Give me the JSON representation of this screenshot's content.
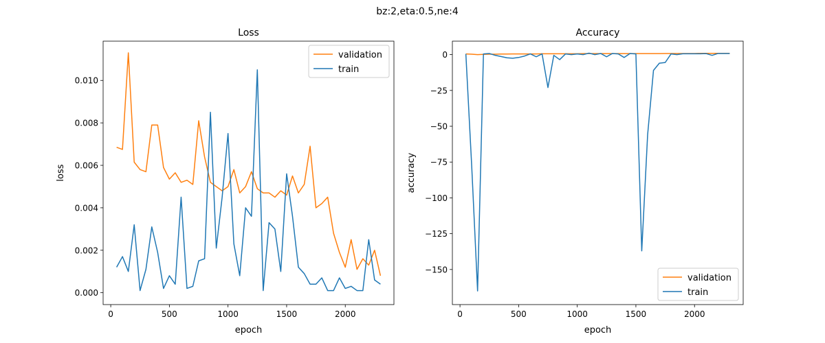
{
  "figure": {
    "suptitle": "bz:2,eta:0.5,ne:4"
  },
  "colors": {
    "validation": "#ff7f0e",
    "train": "#1f77b4",
    "axes": "#000000",
    "legend_border": "#cccccc"
  },
  "chart_data": [
    {
      "type": "line",
      "title": "Loss",
      "xlabel": "epoch",
      "ylabel": "loss",
      "xlim": [
        -65,
        2415
      ],
      "ylim": [
        -0.00056,
        0.01185
      ],
      "xticks": [
        0,
        500,
        1000,
        1500,
        2000
      ],
      "xtick_labels": [
        "0",
        "500",
        "1000",
        "1500",
        "2000"
      ],
      "yticks": [
        0,
        0.002,
        0.004,
        0.006,
        0.008,
        0.01
      ],
      "ytick_labels": [
        "0.000",
        "0.002",
        "0.004",
        "0.006",
        "0.008",
        "0.010"
      ],
      "legend": "top-right",
      "grid": false,
      "x": [
        50,
        100,
        150,
        200,
        250,
        300,
        350,
        400,
        450,
        500,
        550,
        600,
        650,
        700,
        750,
        800,
        850,
        900,
        950,
        1000,
        1050,
        1100,
        1150,
        1200,
        1250,
        1300,
        1350,
        1400,
        1450,
        1500,
        1550,
        1600,
        1650,
        1700,
        1750,
        1800,
        1850,
        1900,
        1950,
        2000,
        2050,
        2100,
        2150,
        2200,
        2250,
        2300
      ],
      "series": [
        {
          "name": "validation",
          "values": [
            0.00685,
            0.00675,
            0.0113,
            0.00615,
            0.0058,
            0.0057,
            0.0079,
            0.0079,
            0.0059,
            0.00535,
            0.00565,
            0.0052,
            0.0053,
            0.0051,
            0.0081,
            0.0064,
            0.0052,
            0.005,
            0.0048,
            0.005,
            0.0058,
            0.0047,
            0.005,
            0.0057,
            0.0049,
            0.0047,
            0.0047,
            0.0045,
            0.0048,
            0.0046,
            0.0055,
            0.0047,
            0.0051,
            0.0069,
            0.004,
            0.0042,
            0.0045,
            0.0028,
            0.0019,
            0.0012,
            0.0025,
            0.0011,
            0.0016,
            0.0013,
            0.002,
            0.0008
          ]
        },
        {
          "name": "train",
          "values": [
            0.0012,
            0.0017,
            0.001,
            0.0032,
            0.0001,
            0.0011,
            0.0031,
            0.0019,
            0.0002,
            0.0008,
            0.0004,
            0.0045,
            0.0002,
            0.0003,
            0.0015,
            0.0016,
            0.0085,
            0.0021,
            0.0045,
            0.0075,
            0.0023,
            0.0008,
            0.004,
            0.0036,
            0.0105,
            0.0001,
            0.0033,
            0.003,
            0.001,
            0.0056,
            0.0036,
            0.0012,
            0.0009,
            0.0004,
            0.0004,
            0.0007,
            0.0001,
            0.0001,
            0.0007,
            0.0002,
            0.0003,
            0.0001,
            0.0001,
            0.0025,
            0.0006,
            0.0004
          ]
        }
      ]
    },
    {
      "type": "line",
      "title": "Accuracy",
      "xlabel": "epoch",
      "ylabel": "accuracy",
      "xlim": [
        -65,
        2415
      ],
      "ylim": [
        -174.5,
        9.4
      ],
      "xticks": [
        0,
        500,
        1000,
        1500,
        2000
      ],
      "xtick_labels": [
        "0",
        "500",
        "1000",
        "1500",
        "2000"
      ],
      "yticks": [
        0,
        -25,
        -50,
        -75,
        -100,
        -125,
        -150
      ],
      "ytick_labels": [
        "0",
        "−25",
        "−50",
        "−75",
        "−100",
        "−125",
        "−150"
      ],
      "legend": "bottom-right",
      "grid": false,
      "x": [
        50,
        100,
        150,
        200,
        250,
        300,
        350,
        400,
        450,
        500,
        550,
        600,
        650,
        700,
        750,
        800,
        850,
        900,
        950,
        1000,
        1050,
        1100,
        1150,
        1200,
        1250,
        1300,
        1350,
        1400,
        1450,
        1500,
        1550,
        1600,
        1650,
        1700,
        1750,
        1800,
        1850,
        1900,
        1950,
        2000,
        2050,
        2100,
        2150,
        2200,
        2250,
        2300
      ],
      "series": [
        {
          "name": "validation",
          "values": [
            0.5,
            0.3,
            0.0,
            0.2,
            0.3,
            0.3,
            0.4,
            0.4,
            0.5,
            0.5,
            0.5,
            0.5,
            0.5,
            0.6,
            0.6,
            0.6,
            0.6,
            0.6,
            0.6,
            0.6,
            0.7,
            0.7,
            0.7,
            0.7,
            0.7,
            0.7,
            0.7,
            0.7,
            0.7,
            0.7,
            0.7,
            0.7,
            0.7,
            0.7,
            0.8,
            0.8,
            0.8,
            0.8,
            0.8,
            0.8,
            0.9,
            0.9,
            0.9,
            0.9,
            0.9,
            0.9
          ]
        },
        {
          "name": "train",
          "values": [
            0.5,
            -78,
            -165,
            0.5,
            0.8,
            -0.5,
            -1.3,
            -2.2,
            -2.5,
            -2.0,
            -1.0,
            0.5,
            -1.5,
            0.5,
            -23,
            -0.5,
            -3.5,
            0.5,
            0.0,
            0.5,
            0.0,
            1.0,
            0.0,
            0.8,
            -1.5,
            0.8,
            0.5,
            -2.0,
            0.8,
            0.5,
            -137,
            -56,
            -11,
            -6,
            -5.5,
            0.5,
            0.0,
            0.6,
            0.6,
            0.6,
            0.6,
            0.7,
            -0.5,
            0.8,
            0.8,
            0.8
          ]
        }
      ]
    }
  ]
}
